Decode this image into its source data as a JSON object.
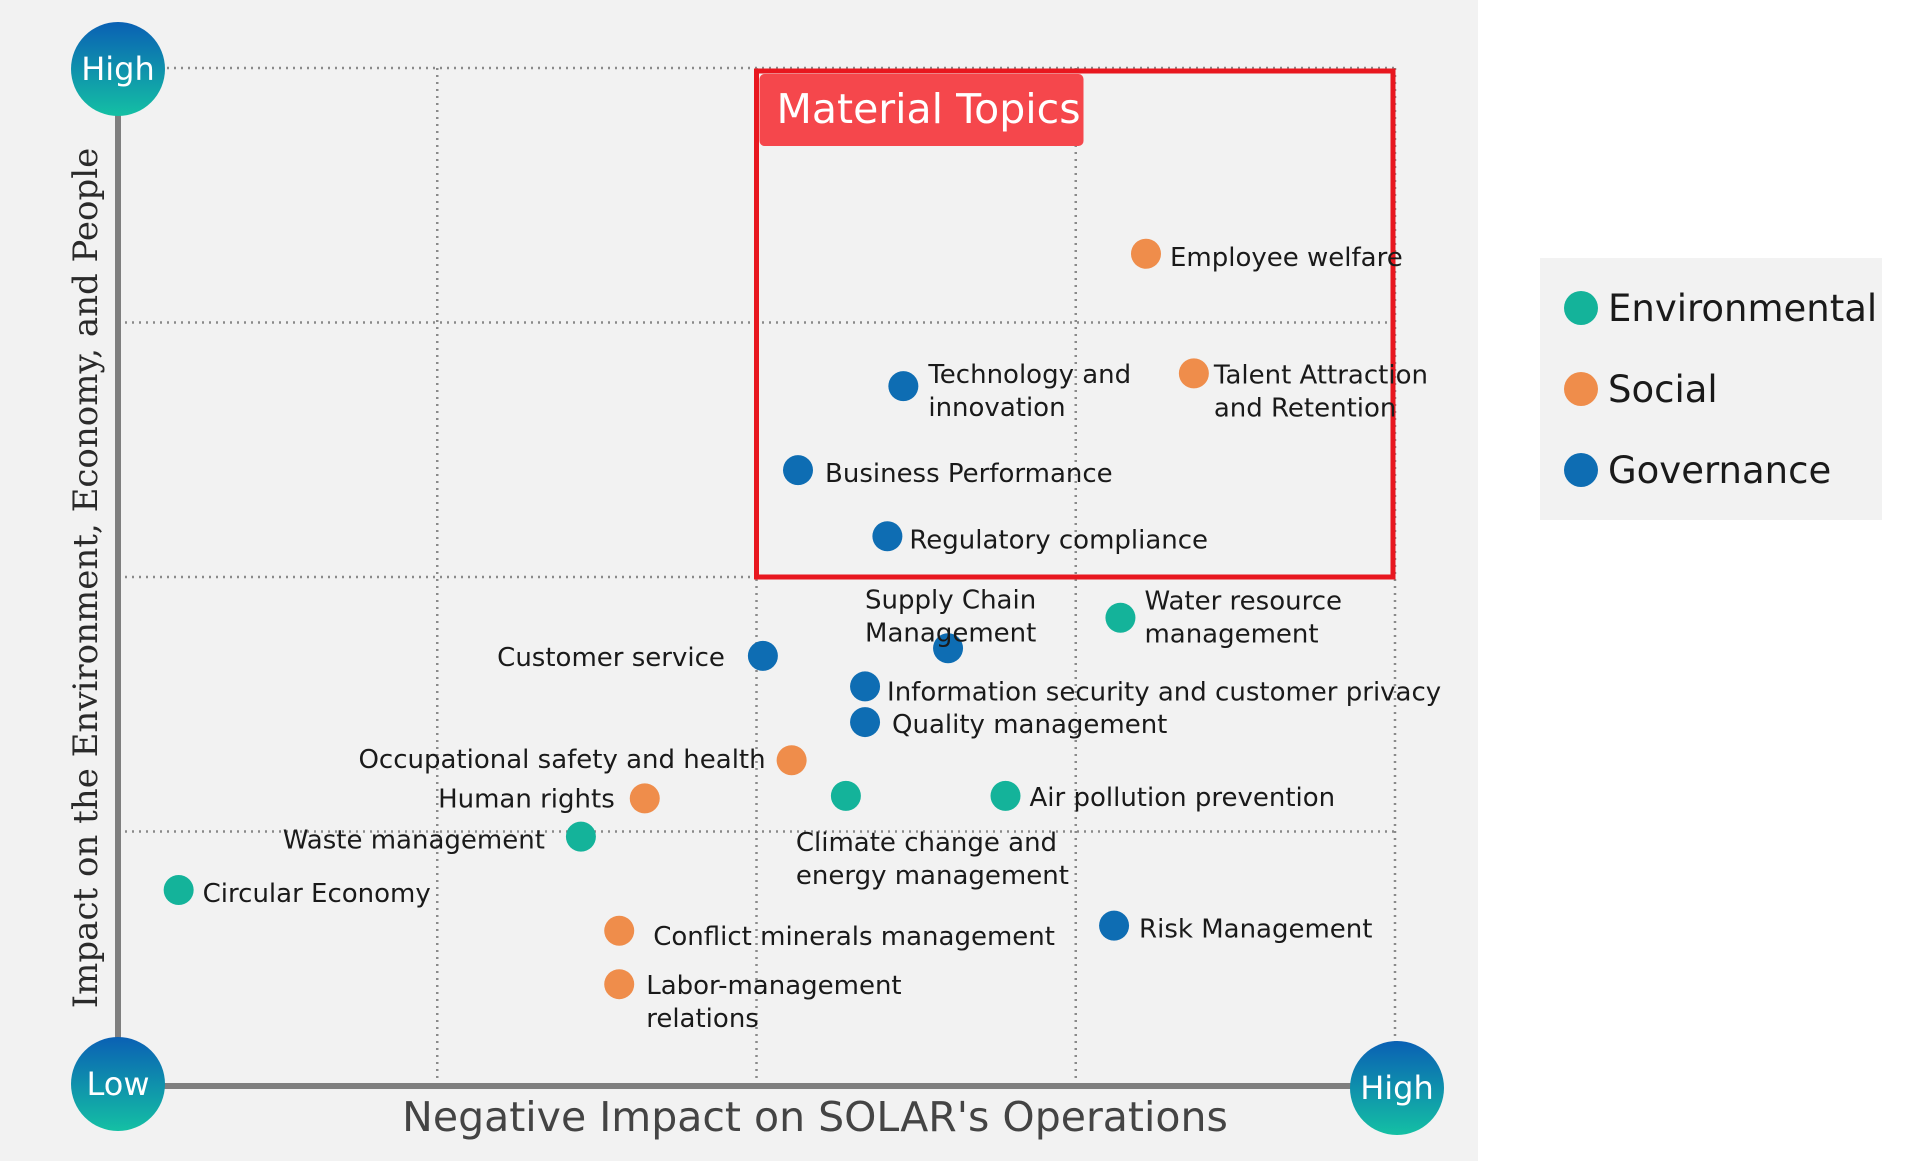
{
  "chart_data": {
    "type": "scatter",
    "title": "",
    "xlabel": "Negative Impact on SOLAR's Operations",
    "ylabel": "Impact on the Environment, Economy, and People",
    "xlim": [
      0,
      4
    ],
    "ylim": [
      0,
      4
    ],
    "grid": true,
    "legend_position": "right",
    "axis_markers": {
      "x_high": "High",
      "y_high": "High",
      "origin": "Low"
    },
    "highlight": {
      "label": "Material Topics",
      "x_range": [
        2.0,
        4.0
      ],
      "y_range": [
        2.0,
        4.0
      ]
    },
    "series": [
      {
        "name": "Environmental",
        "color": "#14b39a",
        "points": [
          {
            "label": "Water resource management",
            "x": 3.14,
            "y": 1.84
          },
          {
            "label": "Air pollution prevention",
            "x": 2.78,
            "y": 1.14
          },
          {
            "label": "Climate change and energy management",
            "x": 2.28,
            "y": 1.14
          },
          {
            "label": "Waste management",
            "x": 1.45,
            "y": 0.98
          },
          {
            "label": "Circular Economy",
            "x": 0.19,
            "y": 0.77
          }
        ]
      },
      {
        "name": "Social",
        "color": "#ef8d4b",
        "points": [
          {
            "label": "Employee welfare",
            "x": 3.22,
            "y": 3.27
          },
          {
            "label": "Talent Attraction and Retention",
            "x": 3.37,
            "y": 2.8
          },
          {
            "label": "Occupational safety and health",
            "x": 2.11,
            "y": 1.28
          },
          {
            "label": "Human rights",
            "x": 1.65,
            "y": 1.13
          },
          {
            "label": "Conflict minerals management",
            "x": 1.57,
            "y": 0.61
          },
          {
            "label": "Labor-management relations",
            "x": 1.57,
            "y": 0.4
          }
        ]
      },
      {
        "name": "Governance",
        "color": "#0e6db3",
        "points": [
          {
            "label": "Technology and innovation",
            "x": 2.46,
            "y": 2.75
          },
          {
            "label": "Business Performance",
            "x": 2.13,
            "y": 2.42
          },
          {
            "label": "Regulatory compliance",
            "x": 2.41,
            "y": 2.16
          },
          {
            "label": "Supply Chain Management",
            "x": 2.6,
            "y": 1.72
          },
          {
            "label": "Customer service",
            "x": 2.02,
            "y": 1.69
          },
          {
            "label": "Information security and customer privacy",
            "x": 2.34,
            "y": 1.57
          },
          {
            "label": "Quality management",
            "x": 2.34,
            "y": 1.43
          },
          {
            "label": "Risk Management",
            "x": 3.12,
            "y": 0.63
          }
        ]
      }
    ]
  }
}
